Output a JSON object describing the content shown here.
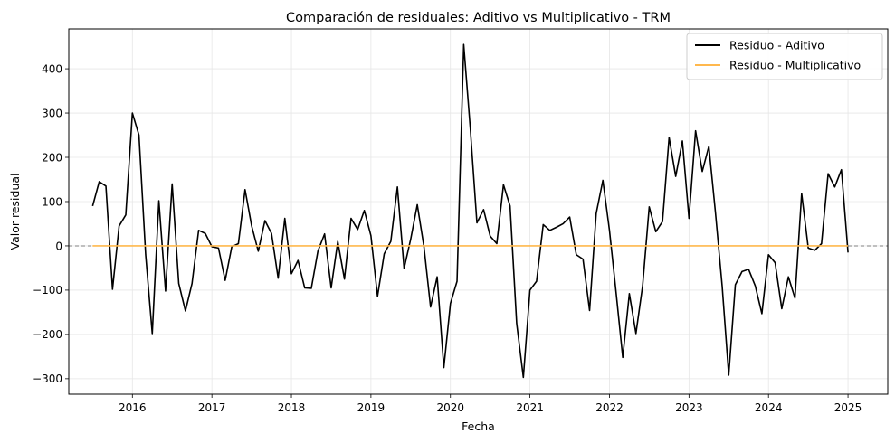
{
  "chart_data": {
    "type": "line",
    "title": "Comparación de residuales: Aditivo vs Multiplicativo - TRM",
    "xlabel": "Fecha",
    "ylabel": "Valor residual",
    "xlim": [
      2015.2,
      2025.5
    ],
    "ylim": [
      -335,
      490
    ],
    "x_ticks": [
      2016,
      2017,
      2018,
      2019,
      2020,
      2021,
      2022,
      2023,
      2024,
      2025
    ],
    "y_ticks": [
      -300,
      -200,
      -100,
      0,
      100,
      200,
      300,
      400
    ],
    "grid": true,
    "legend_position": "top-right",
    "reference_line": {
      "y": 0,
      "style": "dashed",
      "color": "#808080"
    },
    "series": [
      {
        "name": "Residuo - Aditivo",
        "color": "#000000",
        "x": [
          2015.5,
          2015.583,
          2015.667,
          2015.75,
          2015.833,
          2015.917,
          2016.0,
          2016.083,
          2016.167,
          2016.25,
          2016.333,
          2016.417,
          2016.5,
          2016.583,
          2016.667,
          2016.75,
          2016.833,
          2016.917,
          2017.0,
          2017.083,
          2017.167,
          2017.25,
          2017.333,
          2017.417,
          2017.5,
          2017.583,
          2017.667,
          2017.75,
          2017.833,
          2017.917,
          2018.0,
          2018.083,
          2018.167,
          2018.25,
          2018.333,
          2018.417,
          2018.5,
          2018.583,
          2018.667,
          2018.75,
          2018.833,
          2018.917,
          2019.0,
          2019.083,
          2019.167,
          2019.25,
          2019.333,
          2019.417,
          2019.5,
          2019.583,
          2019.667,
          2019.75,
          2019.833,
          2019.917,
          2020.0,
          2020.083,
          2020.167,
          2020.25,
          2020.333,
          2020.417,
          2020.5,
          2020.583,
          2020.667,
          2020.75,
          2020.833,
          2020.917,
          2021.0,
          2021.083,
          2021.167,
          2021.25,
          2021.333,
          2021.417,
          2021.5,
          2021.583,
          2021.667,
          2021.75,
          2021.833,
          2021.917,
          2022.0,
          2022.083,
          2022.167,
          2022.25,
          2022.333,
          2022.417,
          2022.5,
          2022.583,
          2022.667,
          2022.75,
          2022.833,
          2022.917,
          2023.0,
          2023.083,
          2023.167,
          2023.25,
          2023.333,
          2023.417,
          2023.5,
          2023.583,
          2023.667,
          2023.75,
          2023.833,
          2023.917,
          2024.0,
          2024.083,
          2024.167,
          2024.25,
          2024.333,
          2024.417,
          2024.5,
          2024.583,
          2024.667,
          2024.75,
          2024.833,
          2024.917,
          2025.0
        ],
        "y": [
          90,
          145,
          135,
          -98,
          45,
          70,
          300,
          250,
          -20,
          -198,
          102,
          -102,
          140,
          -85,
          -147,
          -85,
          35,
          28,
          -2,
          -5,
          -78,
          -2,
          5,
          127,
          45,
          -12,
          57,
          28,
          -73,
          62,
          -63,
          -33,
          -95,
          -96,
          -12,
          27,
          -95,
          10,
          -75,
          62,
          37,
          80,
          23,
          -114,
          -18,
          10,
          133,
          -51,
          15,
          93,
          -2,
          -138,
          -70,
          -275,
          -130,
          -80,
          455,
          265,
          52,
          82,
          22,
          5,
          138,
          90,
          -175,
          -297,
          -100,
          -80,
          48,
          35,
          42,
          50,
          65,
          -20,
          -30,
          -146,
          73,
          148,
          35,
          -105,
          -252,
          -108,
          -198,
          -90,
          88,
          32,
          55,
          245,
          157,
          237,
          62,
          260,
          168,
          225,
          75,
          -90,
          -292,
          -88,
          -58,
          -53,
          -90,
          -153,
          -20,
          -38,
          -142,
          -70,
          -118,
          118,
          -5,
          -10,
          5,
          163,
          133,
          172,
          -15
        ]
      },
      {
        "name": "Residuo - Multiplicativo",
        "color": "#ffb84d",
        "x": [
          2015.5,
          2025.0
        ],
        "y": [
          0,
          0
        ]
      }
    ]
  }
}
